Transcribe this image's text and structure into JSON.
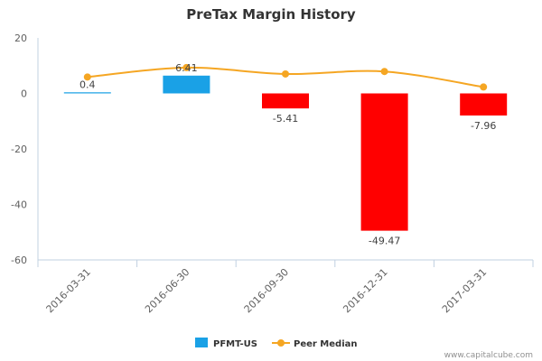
{
  "chart_data": {
    "type": "bar",
    "title": "PreTax Margin History",
    "categories": [
      "2016-03-31",
      "2016-06-30",
      "2016-09-30",
      "2016-12-31",
      "2017-03-31"
    ],
    "series": [
      {
        "name": "PFMT-US",
        "type": "bar",
        "values": [
          0.4,
          6.41,
          -5.41,
          -49.47,
          -7.96
        ],
        "data_labels": [
          "0.4",
          "6.41",
          "-5.41",
          "-49.47",
          "-7.96"
        ]
      },
      {
        "name": "Peer Median",
        "type": "line",
        "values": [
          5.9,
          9.3,
          7.0,
          7.9,
          2.3
        ]
      }
    ],
    "yticks": [
      "20",
      "0",
      "-20",
      "-40",
      "-60"
    ],
    "ylim": [
      -60,
      20
    ],
    "grid": false,
    "legend": "bottom-center"
  },
  "colors": {
    "positive": "#1aa1e6",
    "negative": "#ff0000",
    "peer": "#f5a623"
  },
  "credit": "www.capitalcube.com"
}
